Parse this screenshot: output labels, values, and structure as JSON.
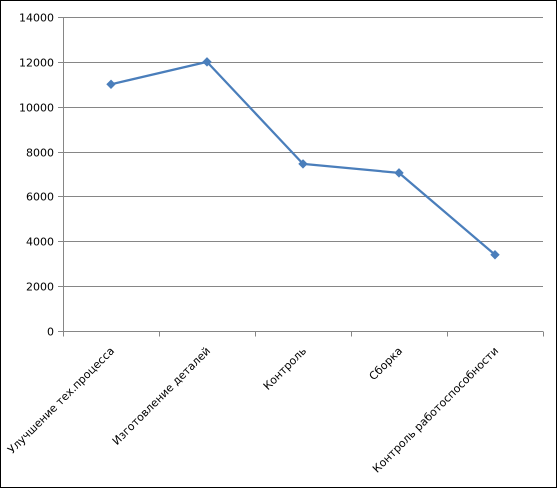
{
  "chart_data": {
    "type": "line",
    "title": "",
    "xlabel": "",
    "ylabel": "",
    "categories": [
      "Улучшение тех.процесса",
      "Изготовление деталей",
      "Контроль",
      "Сборка",
      "Контроль работоспособности"
    ],
    "series": [
      {
        "values": [
          11000,
          12000,
          7450,
          7050,
          3400
        ]
      }
    ],
    "ylim": [
      0,
      14000
    ],
    "yticks": [
      0,
      2000,
      4000,
      6000,
      8000,
      10000,
      12000,
      14000
    ],
    "grid": true,
    "legend": "none",
    "colors": {
      "line": "#4a7ebb",
      "marker": "#4a7ebb",
      "grid": "#868686",
      "axis": "#868686"
    }
  }
}
